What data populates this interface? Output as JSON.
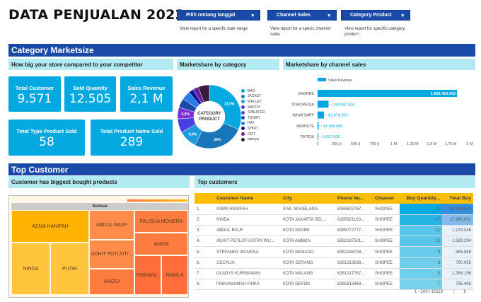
{
  "title": "DATA PENJUALAN 2022",
  "filters": [
    {
      "label": "Pilih rentang tanggal",
      "hint": "View report for a specific date range"
    },
    {
      "label": "Channel Sales",
      "hint": "View report for a spesic channel sales"
    },
    {
      "label": "Category Product",
      "hint": "View report for specific category product"
    }
  ],
  "marketsize": {
    "section": "Category Marketsize",
    "subtitle": "How big your store compared to your competitor",
    "kpis": [
      {
        "label": "Total Customer",
        "value": "9.571"
      },
      {
        "label": "Sold Quantity",
        "value": "12.505"
      },
      {
        "label": "Sales Revenue",
        "value": "2,1 M"
      },
      {
        "label": "Total Type Product Sold",
        "value": "58"
      },
      {
        "label": "Total Product Name Sold",
        "value": "289"
      }
    ],
    "donut_title": "Marketshare by category",
    "donut_center": "CATEGORY PRODUCT",
    "bar_title": "Marketshare by channel sales"
  },
  "chart_data": [
    {
      "type": "pie",
      "center_label": "CATEGORY PRODUCT",
      "categories": [
        "BAG",
        "JACKET",
        "WALLET",
        "WATCH",
        "SWEATER",
        "TSHIRT",
        "HAT",
        "SHIRT",
        "GIFT",
        "lainnya"
      ],
      "values": [
        31.5,
        26,
        9.4,
        7,
        5.9,
        4.6,
        4.5,
        2.6,
        2.8,
        5.7
      ],
      "data_labels": [
        "31,5%",
        "26%",
        "9,4%",
        "",
        "5,9%",
        "",
        "",
        "",
        "",
        ""
      ],
      "colors": [
        "#03a9e0",
        "#1976b8",
        "#1e9be0",
        "#4a3fe0",
        "#7b2fd6",
        "#1a4aa8",
        "#2a7ae8",
        "#0a1aa0",
        "#6a1a9a",
        "#3a1a3a"
      ],
      "legend": "right"
    },
    {
      "type": "bar",
      "orientation": "horizontal",
      "series": [
        {
          "name": "Sales Revenue",
          "values": [
            1832416402,
            143947424,
            83874950,
            14498000,
            5637000
          ]
        }
      ],
      "categories": [
        "SHOPEE",
        "TOKOPEDIA",
        "WHATSAPP",
        "WEBSITE",
        "TIKTOK"
      ],
      "data_labels": [
        "1.832.416.402",
        "143.947.424",
        "83.874.950",
        "14.498.000",
        "5.637.000"
      ],
      "xlim": [
        0,
        2000000000
      ],
      "x_ticks": [
        "0",
        "250 jt",
        "500 jt",
        "750 jt",
        "1 M",
        "1,25 M",
        "1,5 M",
        "1,75 M",
        "2 M"
      ],
      "color": "#03a9e0",
      "legend": "top"
    }
  ],
  "top_customer": {
    "section": "Top Customer",
    "treemap_title": "Customer has biggest bought products",
    "treemap_root": "Semua",
    "treemap": [
      "ASMA HANIFAH",
      "NINDA",
      "PUTRI",
      "ABDUL RAUF",
      "ADHIT POTLOT/...",
      "ANGGI",
      "FALISHA MONERA",
      "ANISA",
      "FINKA/M..",
      "NABILA"
    ],
    "table_title": "Top customers",
    "columns": [
      "",
      "Customer Name",
      "City",
      "Phone Nu...",
      "Channel",
      "Buy Quantity...",
      "Total Buy"
    ],
    "rows": [
      [
        "1.",
        "ASMA HANIFAH",
        "KAB. MAGELANG",
        "6285602767...",
        "SHOPEE",
        "21",
        "30.999.845"
      ],
      [
        "2.",
        "NINDA",
        "KOTA JAKARTA SEL...",
        "6285921100...",
        "SHOPEE",
        "17",
        "17.980.901"
      ],
      [
        "3.",
        "ABDUL RAUF",
        "KOTA KEDIRI",
        "6285777777...",
        "SHOPEE",
        "11",
        "1.179.046"
      ],
      [
        "4.",
        "ADHIT POTLOT/ASTRY WU...",
        "KOTA AMBON",
        "6282197501...",
        "SHOPEE",
        "11",
        "1.589.394"
      ],
      [
        "5.",
        "STEFANNY WANGSA",
        "KOTA MANADO",
        "6282188708...",
        "SHOPEE",
        "9",
        "985.888"
      ],
      [
        "6.",
        "CECYLIA",
        "KOTA SERANG",
        "6281313638...",
        "SHOPEE",
        "8",
        "790.055"
      ],
      [
        "7.",
        "GLADYS KURNIAWAN",
        "KOTA MALANG",
        "6281217767...",
        "SHOPEE",
        "8",
        "1.358.196"
      ],
      [
        "8.",
        "FINKA/MAMAH FINKA",
        "KOTA DEPOK",
        "6285813463...",
        "SHOPEE",
        "7",
        "795.495"
      ]
    ],
    "pagination": "1 - 100 / 10119",
    "prev": "‹",
    "next": "›"
  }
}
